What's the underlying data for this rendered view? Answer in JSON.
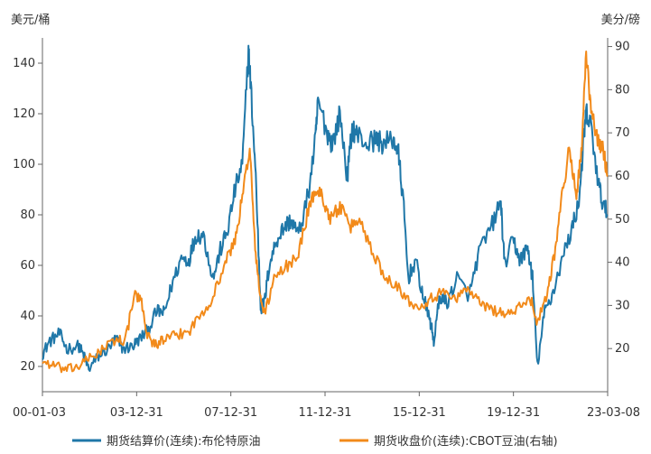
{
  "chart_data": {
    "type": "line",
    "left_unit": "美元/桶",
    "right_unit": "美分/磅",
    "x_ticks": [
      "00-01-03",
      "03-12-31",
      "07-12-31",
      "11-12-31",
      "15-12-31",
      "19-12-31",
      "23-03-08"
    ],
    "y_left": {
      "ticks": [
        20,
        40,
        60,
        80,
        100,
        120,
        140
      ],
      "range": [
        10,
        150
      ]
    },
    "y_right": {
      "ticks": [
        20,
        30,
        40,
        50,
        60,
        70,
        80,
        90
      ],
      "range": [
        10,
        92
      ]
    },
    "grid": false,
    "legend_position": "bottom",
    "colors": {
      "brent": "#1f77a8",
      "soyoil": "#f28a1a",
      "axis": "#666666",
      "text": "#333333"
    },
    "series": [
      {
        "name": "期货结算价(连续):布伦特原油",
        "axis": "left",
        "color": "#1f77a8",
        "x": [
          2000.0,
          2000.3,
          2000.7,
          2001.0,
          2001.5,
          2001.7,
          2001.9,
          2002.3,
          2002.7,
          2003.0,
          2003.3,
          2003.7,
          2004.0,
          2004.3,
          2004.7,
          2005.0,
          2005.3,
          2005.7,
          2006.0,
          2006.3,
          2006.6,
          2007.0,
          2007.3,
          2007.6,
          2007.9,
          2008.2,
          2008.45,
          2008.55,
          2008.75,
          2008.95,
          2009.1,
          2009.3,
          2009.6,
          2009.9,
          2010.2,
          2010.5,
          2010.9,
          2011.2,
          2011.3,
          2011.7,
          2011.9,
          2012.2,
          2012.5,
          2012.7,
          2012.9,
          2013.3,
          2013.7,
          2014.0,
          2014.4,
          2014.6,
          2014.8,
          2015.0,
          2015.3,
          2015.6,
          2015.9,
          2016.05,
          2016.3,
          2016.6,
          2017.0,
          2017.5,
          2017.9,
          2018.4,
          2018.8,
          2018.95,
          2019.3,
          2019.6,
          2019.9,
          2020.1,
          2020.3,
          2020.6,
          2020.9,
          2021.3,
          2021.7,
          2022.0,
          2022.2,
          2022.3,
          2022.5,
          2022.8,
          2023.0,
          2023.18
        ],
        "y": [
          25,
          30,
          33,
          27,
          28,
          24,
          19,
          24,
          27,
          31,
          27,
          28,
          31,
          34,
          42,
          41,
          52,
          63,
          62,
          72,
          72,
          55,
          66,
          74,
          90,
          100,
          145,
          130,
          95,
          43,
          45,
          60,
          70,
          75,
          78,
          72,
          88,
          110,
          125,
          112,
          108,
          120,
          95,
          114,
          112,
          108,
          110,
          108,
          110,
          104,
          85,
          55,
          62,
          48,
          38,
          30,
          48,
          45,
          55,
          48,
          65,
          75,
          85,
          60,
          70,
          62,
          67,
          55,
          20,
          42,
          48,
          62,
          74,
          85,
          110,
          120,
          115,
          92,
          84,
          80
        ]
      },
      {
        "name": "期货收盘价(连续):CBOT豆油(右轴)",
        "axis": "right",
        "color": "#f28a1a",
        "x": [
          2000.0,
          2000.5,
          2001.0,
          2001.5,
          2002.0,
          2002.5,
          2003.0,
          2003.4,
          2003.8,
          2004.1,
          2004.3,
          2004.6,
          2005.0,
          2005.5,
          2006.0,
          2006.5,
          2007.0,
          2007.5,
          2007.9,
          2008.2,
          2008.5,
          2008.7,
          2008.9,
          2009.1,
          2009.5,
          2010.0,
          2010.5,
          2010.9,
          2011.2,
          2011.5,
          2011.8,
          2012.2,
          2012.6,
          2013.0,
          2013.5,
          2014.0,
          2014.5,
          2015.0,
          2015.5,
          2016.0,
          2016.5,
          2017.0,
          2017.5,
          2018.0,
          2018.5,
          2019.0,
          2019.5,
          2020.0,
          2020.3,
          2020.7,
          2021.0,
          2021.3,
          2021.6,
          2021.9,
          2022.1,
          2022.3,
          2022.5,
          2022.8,
          2023.0,
          2023.18
        ],
        "y": [
          17,
          16,
          15,
          16,
          18,
          20,
          22,
          22,
          33,
          30,
          23,
          21,
          22,
          23,
          24,
          28,
          32,
          40,
          45,
          55,
          67,
          45,
          33,
          28,
          36,
          39,
          42,
          52,
          57,
          55,
          50,
          53,
          48,
          50,
          43,
          37,
          35,
          31,
          30,
          32,
          33,
          32,
          34,
          30,
          29,
          28,
          29,
          32,
          26,
          33,
          42,
          55,
          66,
          56,
          65,
          88,
          75,
          68,
          66,
          60
        ]
      }
    ]
  }
}
